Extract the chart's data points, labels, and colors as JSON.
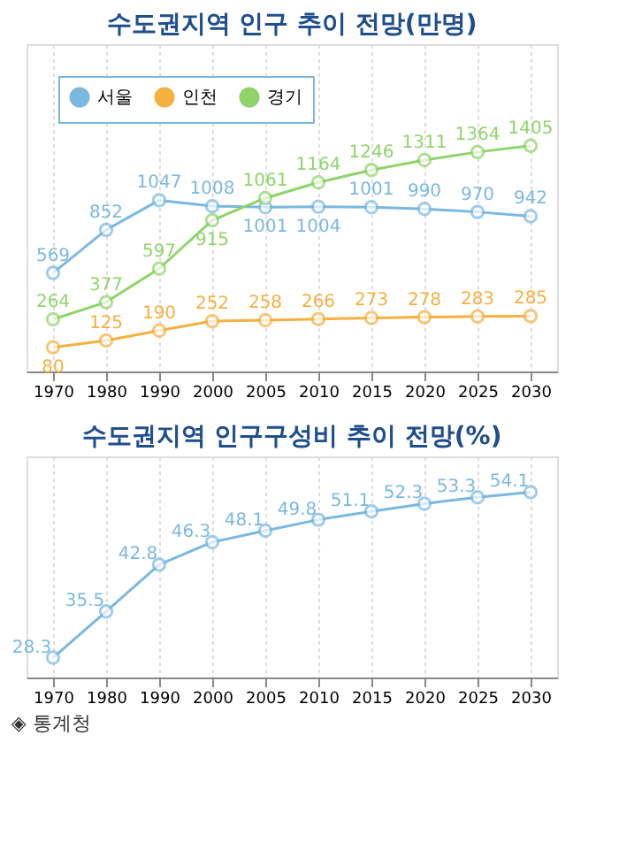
{
  "chart_data": [
    {
      "type": "line",
      "title": "수도권지역 인구 추이 전망(만명)",
      "categories": [
        "1970",
        "1980",
        "1990",
        "2000",
        "2005",
        "2010",
        "2015",
        "2020",
        "2025",
        "2030"
      ],
      "series": [
        {
          "name": "서울",
          "color": "#7ab8e0",
          "values": [
            569,
            852,
            1047,
            1008,
            1001,
            1004,
            1001,
            990,
            970,
            942
          ]
        },
        {
          "name": "인천",
          "color": "#f5b040",
          "values": [
            80,
            125,
            190,
            252,
            258,
            266,
            273,
            278,
            283,
            285
          ]
        },
        {
          "name": "경기",
          "color": "#8fd46a",
          "values": [
            264,
            377,
            597,
            915,
            1061,
            1164,
            1246,
            1311,
            1364,
            1405
          ]
        }
      ],
      "data_labels": true,
      "legend": "top left",
      "marker": "circle",
      "grid": "x"
    },
    {
      "type": "line",
      "title": "수도권지역 인구구성비 추이 전망(%)",
      "categories": [
        "1970",
        "1980",
        "1990",
        "2000",
        "2005",
        "2010",
        "2015",
        "2020",
        "2025",
        "2030"
      ],
      "series": [
        {
          "color": "#7ab8e0",
          "values": [
            28.3,
            35.5,
            42.8,
            46.3,
            48.1,
            49.8,
            51.1,
            52.3,
            53.3,
            54.1
          ]
        }
      ],
      "data_labels": true,
      "marker": "circle",
      "grid": "x",
      "annotations": [
        "◈ 통계청"
      ]
    }
  ]
}
